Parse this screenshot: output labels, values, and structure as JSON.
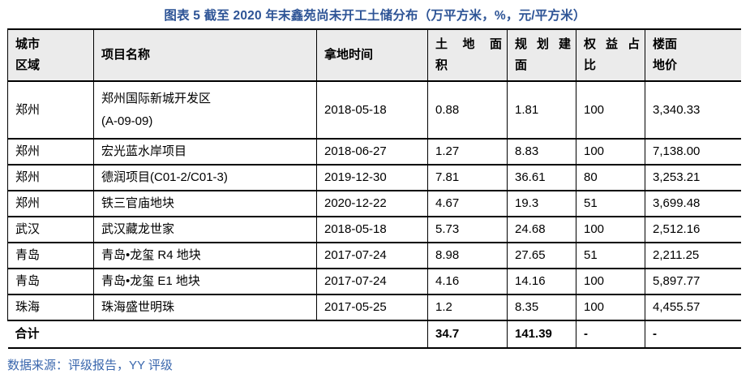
{
  "figure": {
    "title": "图表 5 截至 2020 年末鑫苑尚未开工土储分布（万平方米，%，元/平方米）",
    "source_note": "数据来源：评级报告，YY 评级"
  },
  "colors": {
    "title_blue": "#2E5496",
    "source_blue": "#3A67AD",
    "header_bg": "#EBEBEB",
    "border_black": "#000000"
  },
  "table": {
    "columns": [
      {
        "id": "city-region",
        "label": "城市区域",
        "lines": [
          "城市",
          "区域"
        ],
        "justify_first_line": false
      },
      {
        "id": "project-name",
        "label": "项目名称",
        "lines": [
          "项目名称"
        ],
        "justify_first_line": false
      },
      {
        "id": "land-date",
        "label": "拿地时间",
        "lines": [
          "拿地时间"
        ],
        "justify_first_line": false
      },
      {
        "id": "land-area",
        "label": "土地面积",
        "lines": [
          "土地面",
          "积"
        ],
        "justify_first_line": true
      },
      {
        "id": "planned-gfa",
        "label": "规划建面",
        "lines": [
          "规划建",
          "面"
        ],
        "justify_first_line": true
      },
      {
        "id": "equity-pct",
        "label": "权益占比",
        "lines": [
          "权益占",
          "比"
        ],
        "justify_first_line": true
      },
      {
        "id": "floor-price",
        "label": "楼面地价",
        "lines": [
          "楼面",
          "地价"
        ],
        "justify_first_line": false
      }
    ],
    "rows": [
      {
        "city": "郑州",
        "project": [
          "郑州国际新城开发区",
          "(A-09-09)"
        ],
        "date": "2018-05-18",
        "land_area": "0.88",
        "planned_gfa": "1.81",
        "equity_pct": "100",
        "floor_price": "3,340.33"
      },
      {
        "city": "郑州",
        "project": [
          "宏光蓝水岸项目"
        ],
        "date": "2018-06-27",
        "land_area": "1.27",
        "planned_gfa": "8.83",
        "equity_pct": "100",
        "floor_price": "7,138.00"
      },
      {
        "city": "郑州",
        "project": [
          "德润项目(C01-2/C01-3)"
        ],
        "date": "2019-12-30",
        "land_area": "7.81",
        "planned_gfa": "36.61",
        "equity_pct": "80",
        "floor_price": "3,253.21"
      },
      {
        "city": "郑州",
        "project": [
          "铁三官庙地块"
        ],
        "date": "2020-12-22",
        "land_area": "4.67",
        "planned_gfa": "19.3",
        "equity_pct": "51",
        "floor_price": "3,699.48"
      },
      {
        "city": "武汉",
        "project": [
          "武汉藏龙世家"
        ],
        "date": "2018-05-18",
        "land_area": "5.73",
        "planned_gfa": "24.68",
        "equity_pct": "100",
        "floor_price": "2,512.16"
      },
      {
        "city": "青岛",
        "project": [
          "青岛•龙玺 R4 地块"
        ],
        "date": "2017-07-24",
        "land_area": "8.98",
        "planned_gfa": "27.65",
        "equity_pct": "51",
        "floor_price": "2,211.25"
      },
      {
        "city": "青岛",
        "project": [
          "青岛•龙玺 E1 地块"
        ],
        "date": "2017-07-24",
        "land_area": "4.16",
        "planned_gfa": "14.16",
        "equity_pct": "100",
        "floor_price": "5,897.77"
      },
      {
        "city": "珠海",
        "project": [
          "珠海盛世明珠"
        ],
        "date": "2017-05-25",
        "land_area": "1.2",
        "planned_gfa": "8.35",
        "equity_pct": "100",
        "floor_price": "4,455.57"
      }
    ],
    "total": {
      "label": "合计",
      "land_area": "34.7",
      "planned_gfa": "141.39",
      "equity_pct": "-",
      "floor_price": "-"
    }
  }
}
